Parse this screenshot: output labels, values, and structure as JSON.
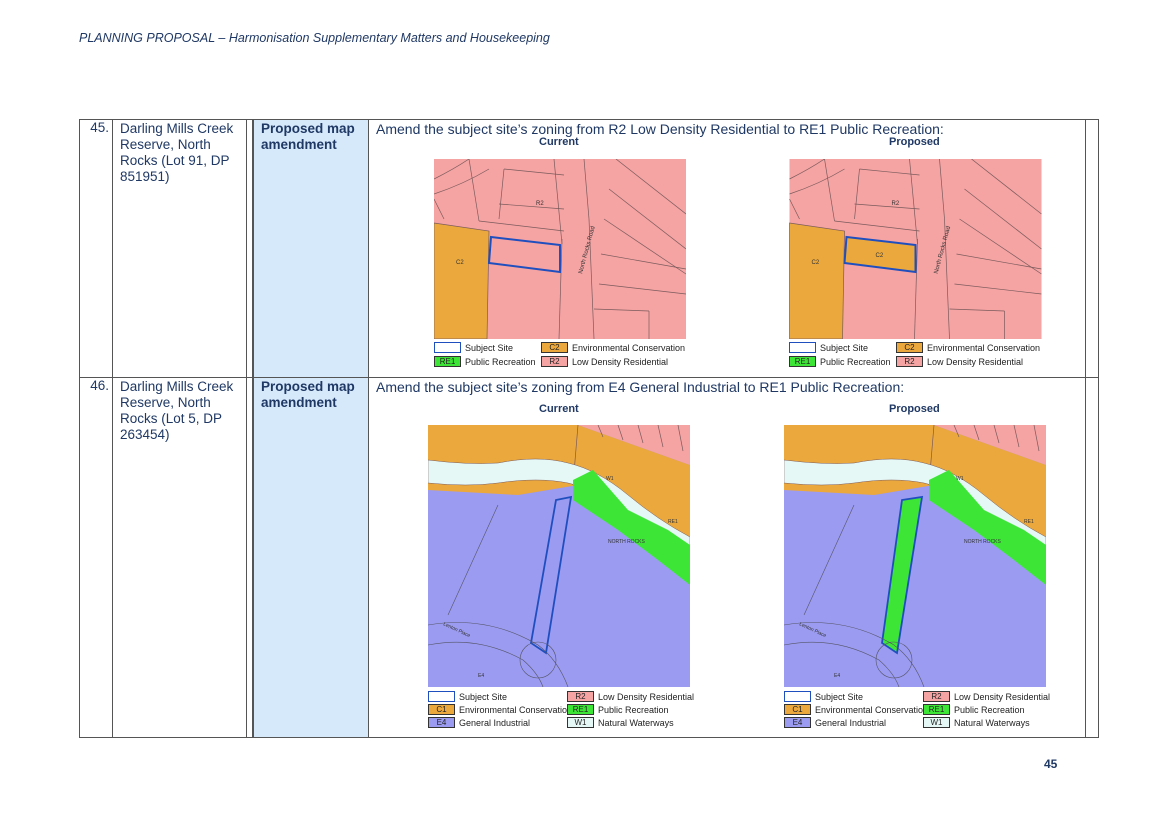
{
  "document": {
    "header_title": "PLANNING PROPOSAL – Harmonisation Supplementary Matters and Housekeeping",
    "page_number": "45"
  },
  "rows": [
    {
      "number": "45.",
      "location": "Darling Mills Creek Reserve, North Rocks (Lot 91, DP 851951)",
      "type": "Proposed map amendment",
      "description": "Amend the subject site’s zoning from R2 Low Density Residential to RE1 Public Recreation:",
      "maps": {
        "current_label": "Current",
        "proposed_label": "Proposed",
        "zone_labels": {
          "r2": "R2",
          "c2": "C2",
          "road": "North Rocks Road"
        },
        "legend": [
          {
            "code": "",
            "label": "Subject Site",
            "color": "#ffffff"
          },
          {
            "code": "C2",
            "label": "Environmental Conservation",
            "color": "#eba83d"
          },
          {
            "code": "RE1",
            "label": "Public Recreation",
            "color": "#3de636"
          },
          {
            "code": "R2",
            "label": "Low Density Residential",
            "color": "#f5a3a3"
          }
        ]
      }
    },
    {
      "number": "46.",
      "location": "Darling Mills Creek Reserve, North Rocks (Lot 5, DP 263454)",
      "type": "Proposed map amendment",
      "description": "Amend the subject site’s zoning from E4 General Industrial to RE1 Public Recreation:",
      "maps": {
        "current_label": "Current",
        "proposed_label": "Proposed",
        "zone_labels": {
          "w1": "W1",
          "north_rocks": "NORTH ROCKS",
          "re1": "RE1",
          "e4": "E4",
          "place": "Lenton Place"
        },
        "legend": [
          {
            "code": "",
            "label": "Subject Site",
            "color": "#ffffff"
          },
          {
            "code": "R2",
            "label": "Low Density Residential",
            "color": "#f5a3a3"
          },
          {
            "code": "C1",
            "label": "Environmental Conservation",
            "color": "#eba83d"
          },
          {
            "code": "RE1",
            "label": "Public Recreation",
            "color": "#3de636"
          },
          {
            "code": "E4",
            "label": "General Industrial",
            "color": "#9b9bf2"
          },
          {
            "code": "W1",
            "label": "Natural Waterways",
            "color": "#e6f8f6"
          }
        ]
      }
    }
  ]
}
